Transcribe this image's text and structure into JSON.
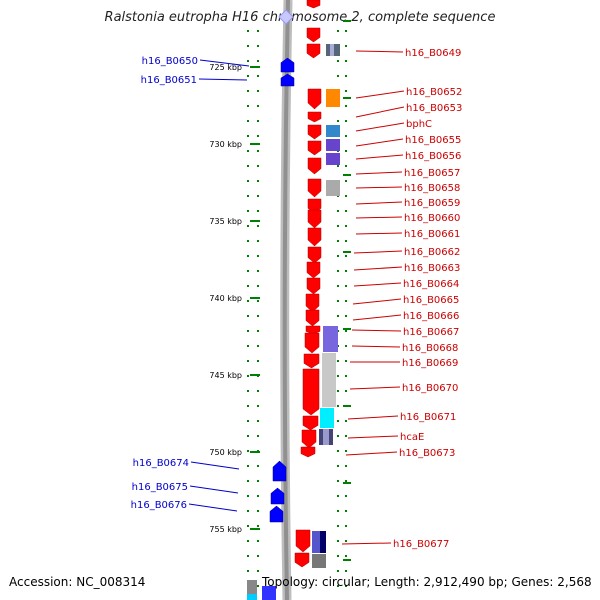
{
  "title": "Ralstonia eutropha H16 chromosome 2, complete sequence",
  "footer": {
    "accession": "Accession: NC_008314",
    "summary": "Topology: circular; Length: 2,912,490 bp; Genes: 2,568"
  },
  "colors": {
    "forward_gene": "#ff0000",
    "reverse_gene": "#0000ff",
    "label_forward": "#cc0000",
    "label_reverse": "#0000cc",
    "axis_ticks": "#008000",
    "backbone": "#909090"
  },
  "ticks": [
    "725 kbp",
    "730 kbp",
    "735 kbp",
    "740 kbp",
    "745 kbp",
    "750 kbp",
    "755 kbp"
  ],
  "left_labels": [
    "h16_B0650",
    "h16_B0651",
    "h16_B0674",
    "h16_B0675",
    "h16_B0676"
  ],
  "right_labels": [
    "h16_B0649",
    "h16_B0652",
    "h16_B0653",
    "bphC",
    "h16_B0655",
    "h16_B0656",
    "h16_B0657",
    "h16_B0658",
    "h16_B0659",
    "h16_B0660",
    "h16_B0661",
    "h16_B0662",
    "h16_B0663",
    "h16_B0664",
    "h16_B0665",
    "h16_B0666",
    "h16_B0667",
    "h16_B0668",
    "h16_B0669",
    "h16_B0670",
    "h16_B0671",
    "hcaE",
    "h16_B0673",
    "h16_B0677"
  ]
}
